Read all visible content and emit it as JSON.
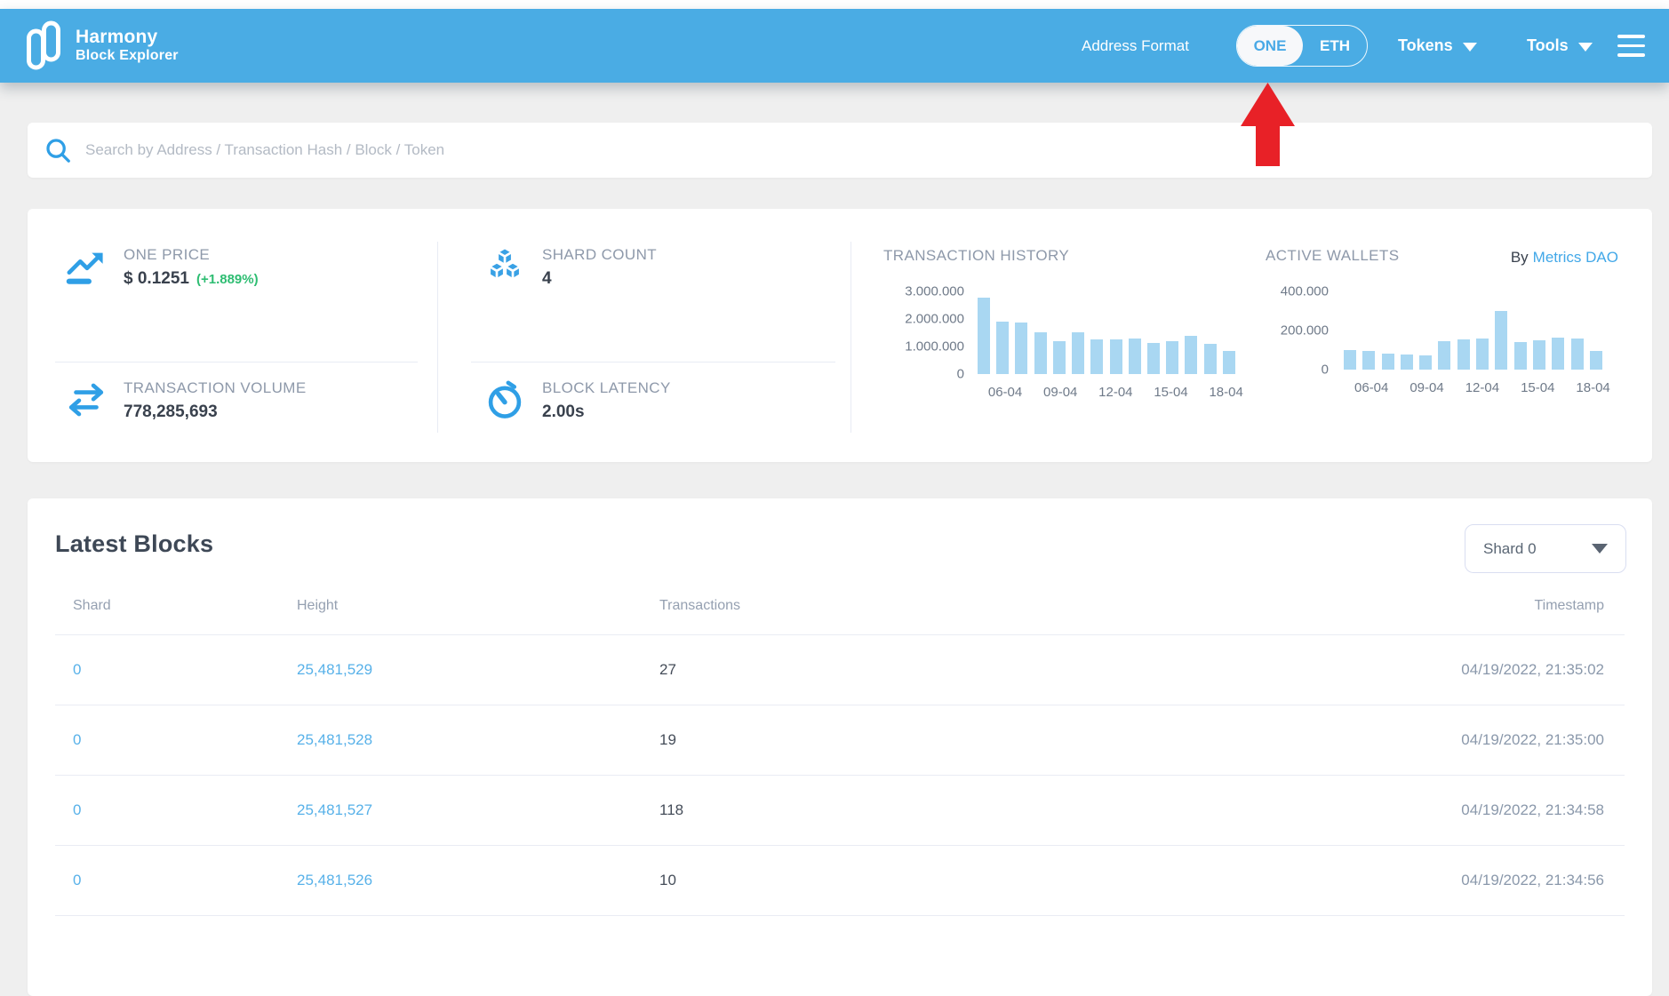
{
  "header": {
    "brand": {
      "line1": "Harmony",
      "line2": "Block Explorer"
    },
    "address_format_label": "Address Format",
    "toggle": {
      "one": "ONE",
      "eth": "ETH",
      "selected": "ONE"
    },
    "tokens_label": "Tokens",
    "tools_label": "Tools"
  },
  "search": {
    "placeholder": "Search by Address / Transaction Hash / Block / Token",
    "value": ""
  },
  "stats": {
    "one_price": {
      "label": "ONE PRICE",
      "value": "$ 0.1251",
      "change": "(+1.889%)"
    },
    "shard_count": {
      "label": "SHARD COUNT",
      "value": "4"
    },
    "transaction_volume": {
      "label": "TRANSACTION VOLUME",
      "value": "778,285,693"
    },
    "block_latency": {
      "label": "BLOCK LATENCY",
      "value": "2.00s"
    },
    "attribution": {
      "prefix": "By",
      "link_text": "Metrics DAO"
    }
  },
  "chart_data": [
    {
      "type": "bar",
      "title": "TRANSACTION HISTORY",
      "ylabel": "",
      "xlabel": "",
      "ylim": [
        0,
        3000000
      ],
      "ymax": 3000000,
      "y_ticks": [
        "3.000.000",
        "2.000.000",
        "1.000.000",
        "0"
      ],
      "values": [
        2780000,
        1900000,
        1870000,
        1520000,
        1200000,
        1530000,
        1270000,
        1270000,
        1300000,
        1140000,
        1200000,
        1380000,
        1100000,
        830000
      ],
      "x_ticks": [
        "06-04",
        "09-04",
        "12-04",
        "15-04",
        "18-04"
      ],
      "x_tick_positions": [
        1,
        4,
        7,
        10,
        13
      ],
      "bar_color": "#a9d7f2",
      "grid": false,
      "legend": "none"
    },
    {
      "type": "bar",
      "title": "ACTIVE WALLETS",
      "ylabel": "",
      "xlabel": "",
      "ylim": [
        0,
        400000
      ],
      "ymax": 400000,
      "y_ticks": [
        "400.000",
        "200.000",
        "0"
      ],
      "values": [
        100000,
        95000,
        82000,
        78000,
        72000,
        145000,
        155000,
        158000,
        300000,
        143000,
        150000,
        165000,
        160000,
        95000
      ],
      "x_ticks": [
        "06-04",
        "09-04",
        "12-04",
        "15-04",
        "18-04"
      ],
      "x_tick_positions": [
        1,
        4,
        7,
        10,
        13
      ],
      "bar_color": "#a9d7f2",
      "grid": false,
      "legend": "none"
    }
  ],
  "latest_blocks": {
    "title": "Latest Blocks",
    "shard_filter_value": "Shard 0",
    "columns": [
      "Shard",
      "Height",
      "Transactions",
      "Timestamp"
    ],
    "rows": [
      {
        "shard": "0",
        "height": "25,481,529",
        "transactions": "27",
        "timestamp": "04/19/2022, 21:35:02"
      },
      {
        "shard": "0",
        "height": "25,481,528",
        "transactions": "19",
        "timestamp": "04/19/2022, 21:35:00"
      },
      {
        "shard": "0",
        "height": "25,481,527",
        "transactions": "118",
        "timestamp": "04/19/2022, 21:34:58"
      },
      {
        "shard": "0",
        "height": "25,481,526",
        "transactions": "10",
        "timestamp": "04/19/2022, 21:34:56"
      }
    ]
  },
  "colors": {
    "header_blue": "#4aace4",
    "accent_blue": "#2f9fe6",
    "link_blue": "#57b1e9",
    "bar_fill": "#a9d7f2",
    "positive_green": "#2ebd72",
    "arrow_red": "#e82127"
  }
}
